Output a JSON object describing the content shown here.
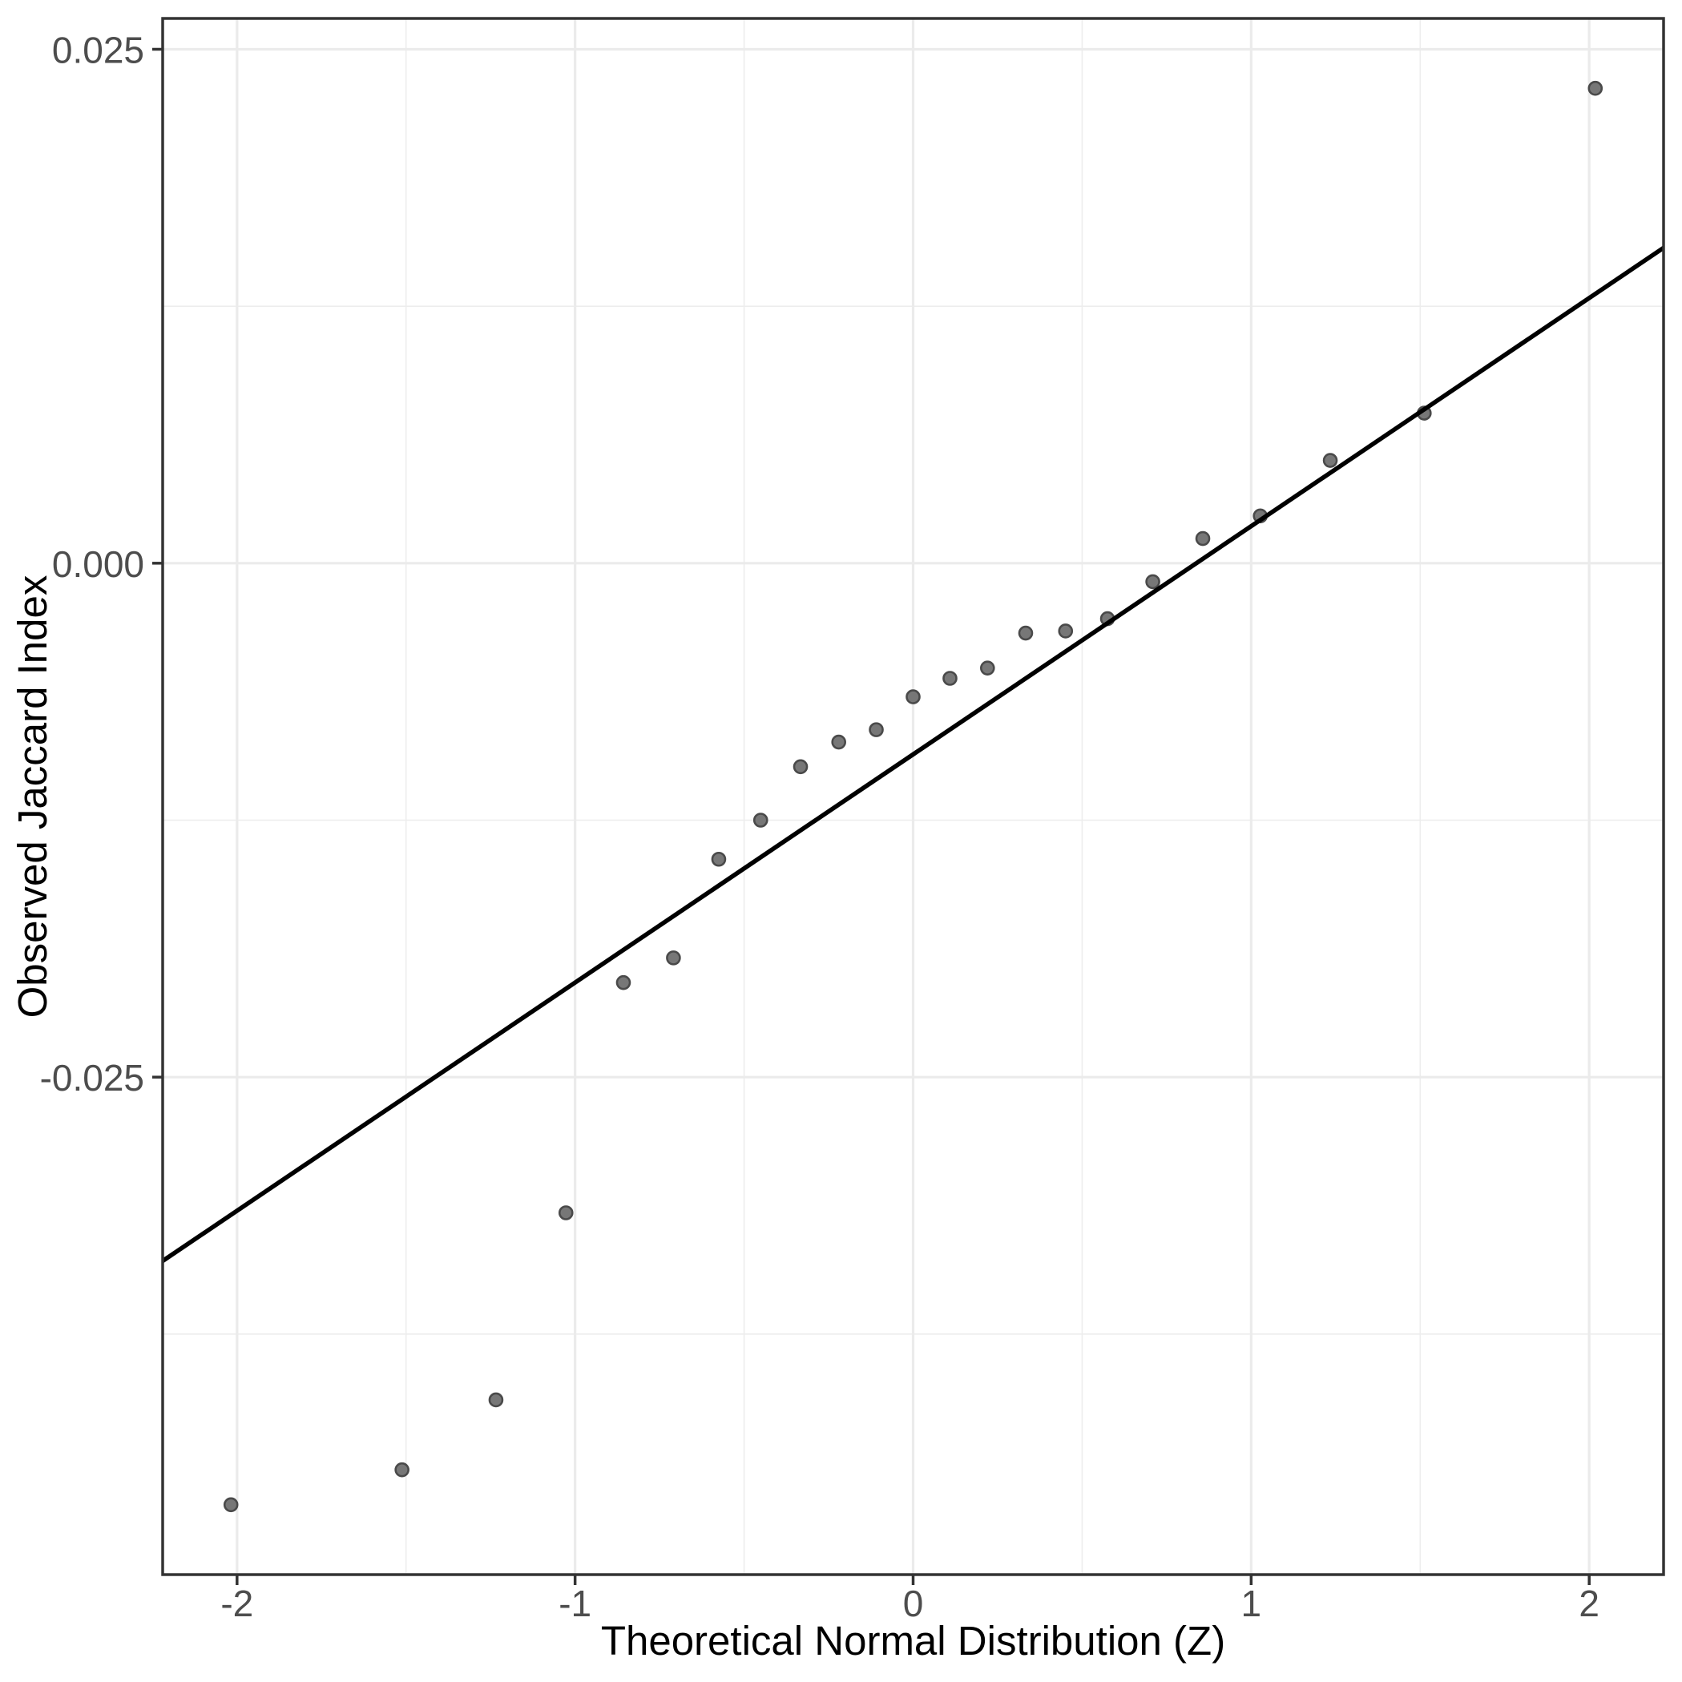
{
  "chart_data": {
    "type": "scatter",
    "title": "",
    "xlabel": "Theoretical Normal Distribution (Z)",
    "ylabel": "Observed Jaccard Index",
    "xlim": [
      -2.22,
      2.22
    ],
    "ylim": [
      -0.0492,
      0.0265
    ],
    "grid": "major+minor",
    "legend": "none",
    "x_major_ticks": [
      -2,
      -1,
      0,
      1,
      2
    ],
    "x_tick_labels": [
      "-2",
      "-1",
      "0",
      "1",
      "2"
    ],
    "x_minor_ticks": [
      -1.5,
      -0.5,
      0.5,
      1.5
    ],
    "y_major_ticks": [
      0.025,
      0.0,
      -0.025
    ],
    "y_tick_labels": [
      "0.025",
      "0.000",
      "-0.025"
    ],
    "y_minor_ticks": [
      0.0125,
      -0.0125,
      -0.0375
    ],
    "points": [
      [
        -2.018,
        -0.0458
      ],
      [
        -1.512,
        -0.0441
      ],
      [
        -1.234,
        -0.0407
      ],
      [
        -1.027,
        -0.0316
      ],
      [
        -0.857,
        -0.0204
      ],
      [
        -0.709,
        -0.0192
      ],
      [
        -0.575,
        -0.0144
      ],
      [
        -0.451,
        -0.0125
      ],
      [
        -0.333,
        -0.0099
      ],
      [
        -0.22,
        -0.0087
      ],
      [
        -0.109,
        -0.0081
      ],
      [
        0.0,
        -0.0065
      ],
      [
        0.109,
        -0.0056
      ],
      [
        0.22,
        -0.0051
      ],
      [
        0.333,
        -0.0034
      ],
      [
        0.451,
        -0.0033
      ],
      [
        0.575,
        -0.0027
      ],
      [
        0.709,
        -0.0009
      ],
      [
        0.857,
        0.0012
      ],
      [
        1.027,
        0.0023
      ],
      [
        1.234,
        0.005
      ],
      [
        1.512,
        0.0073
      ],
      [
        2.018,
        0.0231
      ]
    ],
    "reference_line": {
      "kind": "qqline",
      "slope": 0.0111,
      "intercept": -0.0093
    }
  },
  "colors": {
    "background": "#FFFFFF",
    "panel_background": "#FFFFFF",
    "grid_major": "#EBEBEB",
    "grid_minor": "#EDEDED",
    "panel_border": "#333333",
    "tick_mark": "#333333",
    "tick_label": "#4D4D4D",
    "axis_title": "#000000",
    "point_fill": "#777777",
    "point_stroke": "#4A4A4A",
    "reference_line": "#000000"
  }
}
